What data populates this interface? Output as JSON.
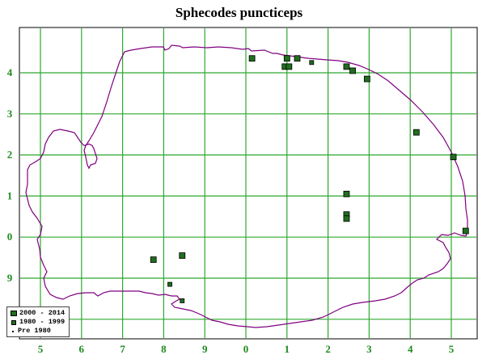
{
  "title": "Sphecodes puncticeps",
  "colors": {
    "grid": "#2ea82e",
    "label": "#1e8a1e",
    "outline": "#800080",
    "marker_fill": "#1f6e1f",
    "marker_stroke": "#000000"
  },
  "x_tick_labels": [
    "5",
    "6",
    "7",
    "8",
    "9",
    "0",
    "1",
    "2",
    "3",
    "4",
    "5"
  ],
  "y_tick_labels": [
    "4",
    "3",
    "2",
    "1",
    "0",
    "9",
    "8"
  ],
  "legend": {
    "items": [
      {
        "symbol": "large-square",
        "label": "2000 - 2014"
      },
      {
        "symbol": "medium-square",
        "label": "1980 - 1999"
      },
      {
        "symbol": "dot",
        "label": "Pre 1980"
      }
    ]
  },
  "chart_data": {
    "type": "scatter",
    "title": "Sphecodes puncticeps",
    "x_axis": {
      "tick_labels": [
        "5",
        "6",
        "7",
        "8",
        "9",
        "0",
        "1",
        "2",
        "3",
        "4",
        "5"
      ]
    },
    "y_axis": {
      "tick_labels": [
        "4",
        "3",
        "2",
        "1",
        "0",
        "9",
        "8"
      ]
    },
    "grid": true,
    "legend_placement": "bottom-left",
    "series": [
      {
        "name": "2000 - 2014",
        "symbol": "large-square",
        "points": [
          [
            10.15,
            4.35
          ],
          [
            11.0,
            4.35
          ],
          [
            11.25,
            4.35
          ],
          [
            10.95,
            4.15
          ],
          [
            11.05,
            4.15
          ],
          [
            12.45,
            4.15
          ],
          [
            12.6,
            4.05
          ],
          [
            12.95,
            3.85
          ],
          [
            14.15,
            2.55
          ],
          [
            15.05,
            1.95
          ],
          [
            15.35,
            0.15
          ],
          [
            12.45,
            1.05
          ],
          [
            12.45,
            0.55
          ],
          [
            12.45,
            0.45
          ],
          [
            7.75,
            -0.55
          ],
          [
            8.45,
            -0.45
          ]
        ]
      },
      {
        "name": "1980 - 1999",
        "symbol": "medium-square",
        "points": [
          [
            11.6,
            4.25
          ],
          [
            8.15,
            -1.15
          ],
          [
            8.45,
            -1.55
          ]
        ]
      }
    ]
  }
}
